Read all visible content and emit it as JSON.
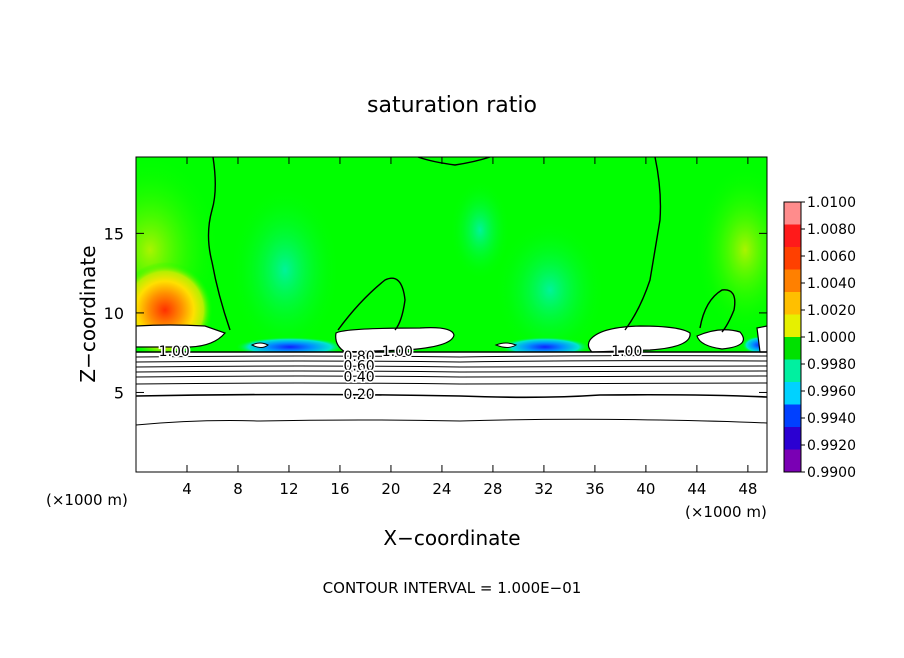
{
  "chart_data": {
    "type": "heatmap",
    "title": "saturation ratio",
    "xlabel": "X−coordinate",
    "ylabel": "Z−coordinate",
    "x_unit_left": "(×1000 m)",
    "x_unit_right": "(×1000 m)",
    "footer": "CONTOUR INTERVAL = 1.000E−01",
    "xlim": [
      0,
      49.5
    ],
    "ylim": [
      0,
      19.8
    ],
    "x_ticks": [
      "4",
      "8",
      "12",
      "16",
      "20",
      "24",
      "28",
      "32",
      "36",
      "40",
      "44",
      "48"
    ],
    "x_tick_values": [
      4,
      8,
      12,
      16,
      20,
      24,
      28,
      32,
      36,
      40,
      44,
      48
    ],
    "y_ticks": [
      "5",
      "10",
      "15"
    ],
    "y_tick_values": [
      5,
      10,
      15
    ],
    "colorbar": {
      "labels": [
        "1.0100",
        "1.0080",
        "1.0060",
        "1.0040",
        "1.0020",
        "1.0000",
        "0.9980",
        "0.9960",
        "0.9940",
        "0.9920",
        "0.9900"
      ],
      "values": [
        1.01,
        1.008,
        1.006,
        1.004,
        1.002,
        1.0,
        0.998,
        0.996,
        0.994,
        0.992,
        0.99
      ],
      "colors": [
        "#ff8c8c",
        "#ff1a1a",
        "#ff4000",
        "#ff8000",
        "#ffbf00",
        "#e6f000",
        "#00e100",
        "#00f0a0",
        "#00d2ff",
        "#0040ff",
        "#2b00d2",
        "#7a00b4"
      ]
    },
    "contour_labels": [
      {
        "text": "1.00",
        "x": 3.0,
        "y": 7.6
      },
      {
        "text": "1.00",
        "x": 20.5,
        "y": 7.6
      },
      {
        "text": "1.00",
        "x": 38.5,
        "y": 7.6
      },
      {
        "text": "0.80",
        "x": 17.5,
        "y": 7.3
      },
      {
        "text": "0.60",
        "x": 17.5,
        "y": 6.7
      },
      {
        "text": "0.40",
        "x": 17.5,
        "y": 6.0
      },
      {
        "text": "0.20",
        "x": 17.5,
        "y": 4.9
      }
    ]
  }
}
